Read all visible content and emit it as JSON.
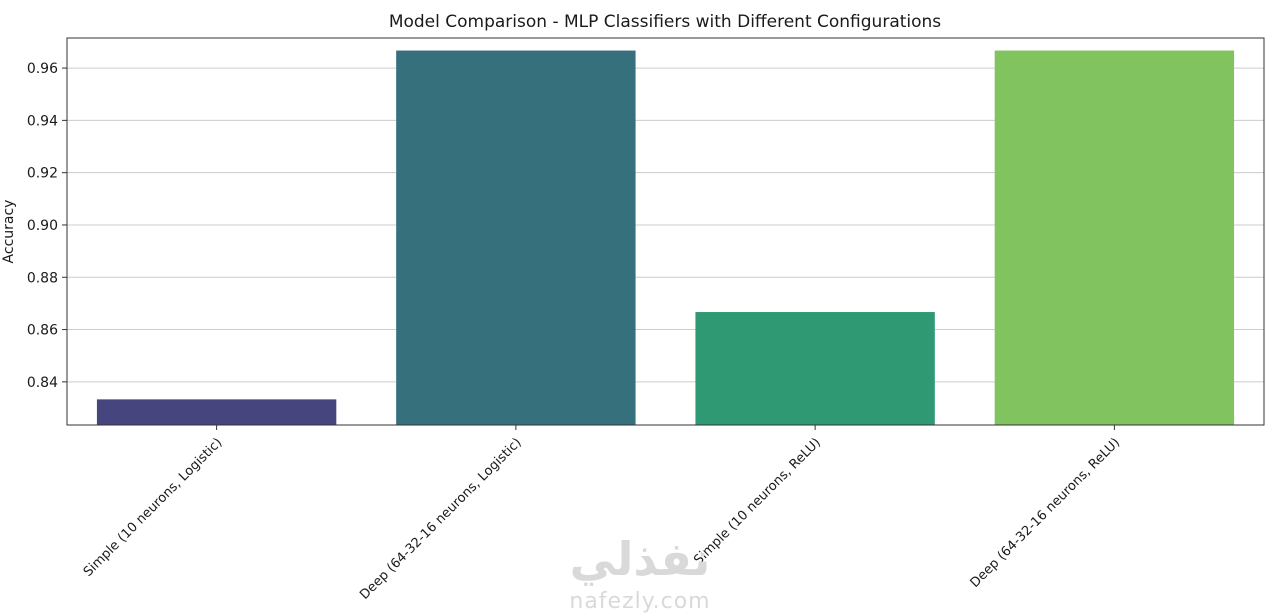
{
  "chart_data": {
    "type": "bar",
    "title": "Model Comparison - MLP Classifiers with Different Configurations",
    "xlabel": "",
    "ylabel": "Accuracy",
    "categories": [
      "Simple (10 neurons, Logistic)",
      "Deep (64-32-16 neurons, Logistic)",
      "Simple (10 neurons, ReLU)",
      "Deep (64-32-16 neurons, ReLU)"
    ],
    "values": [
      0.8333,
      0.9667,
      0.8667,
      0.9667
    ],
    "colors": [
      "#46457e",
      "#37707d",
      "#2f9973",
      "#80c35f"
    ],
    "ylim": [
      0.8235,
      0.9715
    ],
    "yticks": [
      "0.84",
      "0.86",
      "0.88",
      "0.90",
      "0.92",
      "0.94",
      "0.96"
    ],
    "ytick_values": [
      0.84,
      0.86,
      0.88,
      0.9,
      0.92,
      0.94,
      0.96
    ],
    "grid": "y",
    "legend": "none"
  },
  "watermark": {
    "arabic": "نفذلي",
    "latin": "nafezly.com"
  }
}
